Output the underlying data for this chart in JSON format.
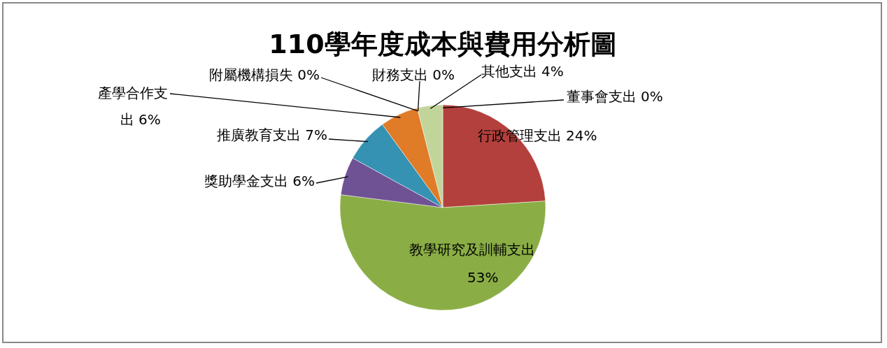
{
  "chart_data": {
    "type": "pie",
    "title": "110學年度成本與費用分析圖",
    "categories": [
      "董事會支出",
      "行政管理支出",
      "教學研究及訓輔支出",
      "獎助學金支出",
      "推廣教育支出",
      "產學合作支出",
      "附屬機構損失",
      "財務支出",
      "其他支出"
    ],
    "values": [
      0,
      24,
      53,
      6,
      7,
      6,
      0,
      0,
      4
    ],
    "colors": [
      "#4a7ebb",
      "#b3403c",
      "#8aae45",
      "#6f5294",
      "#3592b2",
      "#e07b27",
      "#7b9fcf",
      "#d27a78",
      "#c1d59a"
    ],
    "value_labels": [
      "0%",
      "24%",
      "53%",
      "6%",
      "7%",
      "6%",
      "0%",
      "0%",
      "4%"
    ]
  }
}
